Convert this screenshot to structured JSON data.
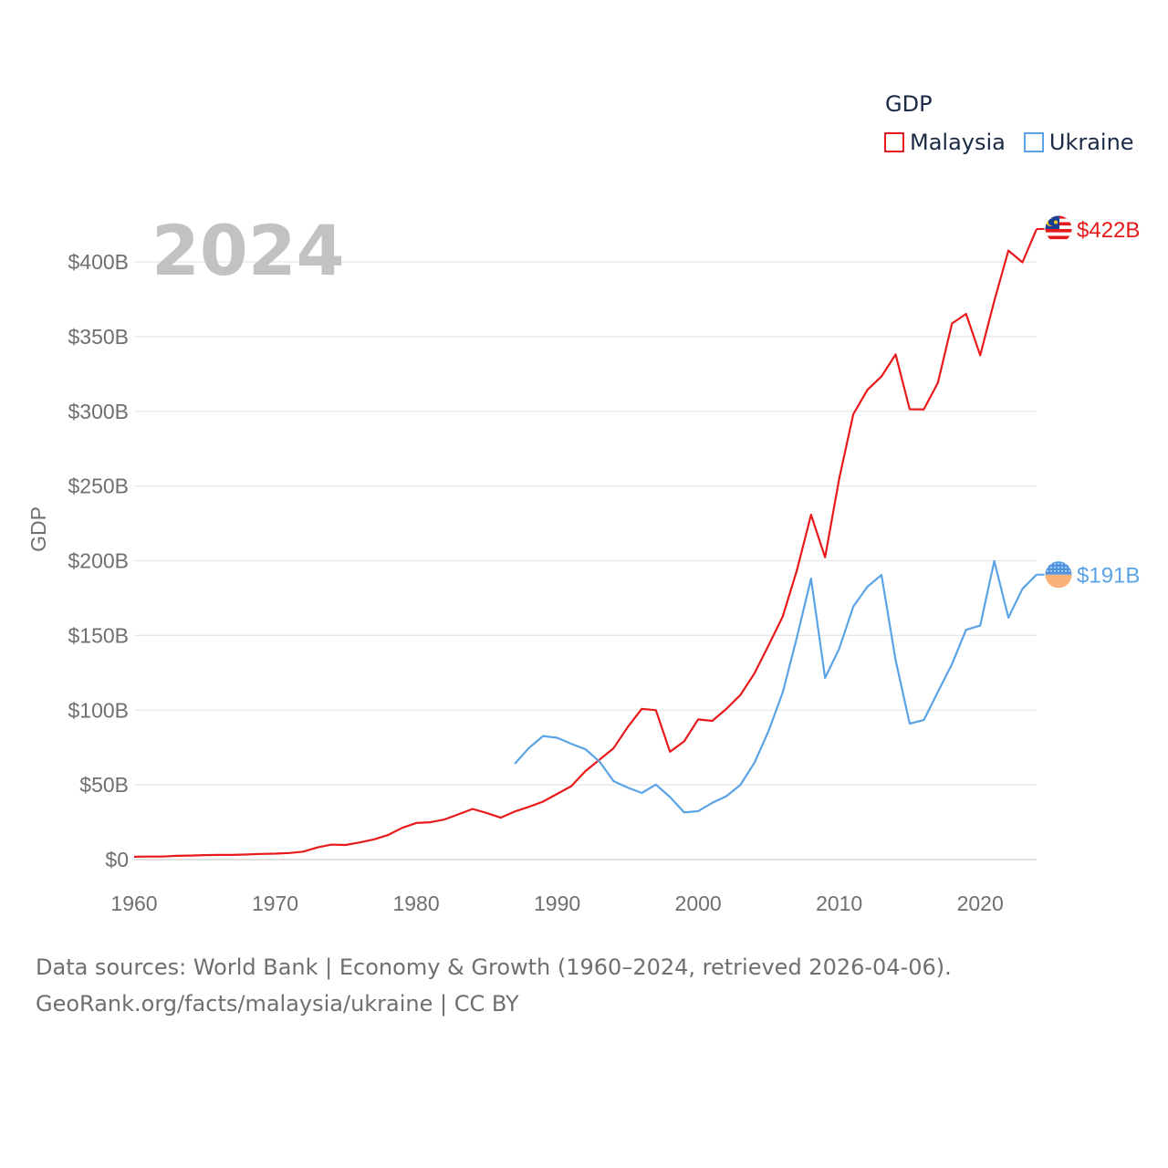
{
  "legend": {
    "title": "GDP",
    "items": [
      {
        "label": "Malaysia",
        "color": "#e8191b"
      },
      {
        "label": "Ukraine",
        "color": "#5aa3e6"
      }
    ]
  },
  "current_year": "2024",
  "footer": {
    "line1": "Data sources: World Bank | Economy & Growth (1960–2024, retrieved 2026-04-06).",
    "line2": "GeoRank.org/facts/malaysia/ukraine | CC BY"
  },
  "chart_data": {
    "type": "line",
    "title": "",
    "xlabel": "",
    "ylabel": "GDP",
    "xlim": [
      1960,
      2024
    ],
    "ylim": [
      0,
      400
    ],
    "y_ticks": [
      0,
      50,
      100,
      150,
      200,
      250,
      300,
      350,
      400
    ],
    "y_tick_labels": [
      "$0",
      "$50B",
      "$100B",
      "$150B",
      "$200B",
      "$250B",
      "$300B",
      "$350B",
      "$400B"
    ],
    "x_ticks": [
      1960,
      1970,
      1980,
      1990,
      2000,
      2010,
      2020
    ],
    "x_tick_labels": [
      "1960",
      "1970",
      "1980",
      "1990",
      "2000",
      "2010",
      "2020"
    ],
    "grid": true,
    "legend_position": "top-right",
    "series": [
      {
        "name": "Malaysia",
        "color": "#e8191b",
        "end_label": "$422B",
        "flag_icon": "malaysia-flag-icon",
        "x": [
          1960,
          1961,
          1962,
          1963,
          1964,
          1965,
          1966,
          1967,
          1968,
          1969,
          1970,
          1971,
          1972,
          1973,
          1974,
          1975,
          1976,
          1977,
          1978,
          1979,
          1980,
          1981,
          1982,
          1983,
          1984,
          1985,
          1986,
          1987,
          1988,
          1989,
          1990,
          1991,
          1992,
          1993,
          1994,
          1995,
          1996,
          1997,
          1998,
          1999,
          2000,
          2001,
          2002,
          2003,
          2004,
          2005,
          2006,
          2007,
          2008,
          2009,
          2010,
          2011,
          2012,
          2013,
          2014,
          2015,
          2016,
          2017,
          2018,
          2019,
          2020,
          2021,
          2022,
          2023,
          2024
        ],
        "values": [
          1.9,
          2.0,
          2.0,
          2.5,
          2.7,
          3.0,
          3.1,
          3.1,
          3.4,
          3.8,
          4.0,
          4.4,
          5.3,
          8.1,
          10.0,
          9.8,
          11.5,
          13.5,
          16.4,
          21.2,
          24.5,
          25.0,
          26.8,
          30.3,
          33.9,
          31.2,
          28.0,
          32.2,
          35.3,
          38.8,
          44.0,
          49.1,
          59.2,
          66.9,
          74.5,
          88.7,
          100.9,
          100.0,
          72.2,
          79.1,
          93.8,
          92.8,
          100.8,
          110.2,
          124.7,
          143.5,
          162.7,
          193.6,
          230.8,
          202.3,
          255.0,
          298.0,
          314.4,
          323.3,
          338.1,
          301.4,
          301.3,
          319.1,
          358.8,
          365.2,
          337.5,
          373.8,
          407.6,
          399.7,
          422.0
        ]
      },
      {
        "name": "Ukraine",
        "color": "#5aa3e6",
        "end_label": "$191B",
        "flag_icon": "ukraine-flag-icon",
        "x": [
          1987,
          1988,
          1989,
          1990,
          1991,
          1992,
          1993,
          1994,
          1995,
          1996,
          1997,
          1998,
          1999,
          2000,
          2001,
          2002,
          2003,
          2004,
          2005,
          2006,
          2007,
          2008,
          2009,
          2010,
          2011,
          2012,
          2013,
          2014,
          2015,
          2016,
          2017,
          2018,
          2019,
          2020,
          2021,
          2022,
          2023,
          2024
        ],
        "values": [
          64.1,
          74.7,
          82.7,
          81.5,
          77.5,
          73.9,
          65.6,
          52.5,
          48.2,
          44.6,
          50.2,
          41.9,
          31.6,
          32.4,
          38.0,
          42.4,
          50.1,
          64.9,
          86.2,
          111.9,
          148.7,
          188.1,
          121.6,
          141.2,
          169.3,
          182.6,
          190.5,
          133.5,
          91.0,
          93.4,
          112.2,
          130.9,
          153.8,
          156.6,
          199.8,
          161.9,
          181.2,
          190.7
        ]
      }
    ]
  }
}
